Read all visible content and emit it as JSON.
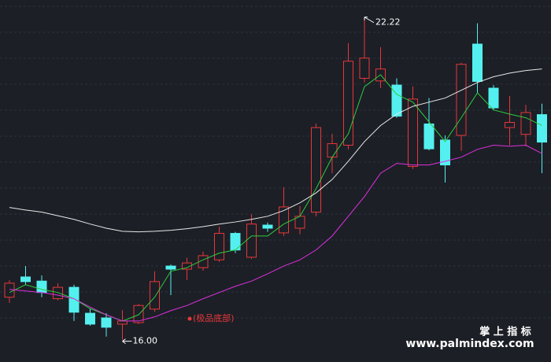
{
  "chart_data": {
    "type": "candlestick",
    "open": [
      16.82,
      17.21,
      17.13,
      16.79,
      17.01,
      16.51,
      16.42,
      16.3,
      16.33,
      16.59,
      17.42,
      17.36,
      17.39,
      17.54,
      18.05,
      17.59,
      18.21,
      18.06,
      18.15,
      18.46,
      19.52,
      19.75,
      21.04,
      20.99,
      20.91,
      19.34,
      20.16,
      19.85,
      19.94,
      21.7,
      20.85,
      20.09,
      19.96,
      20.34
    ],
    "high": [
      17.15,
      17.42,
      17.24,
      17.09,
      17.06,
      16.6,
      16.51,
      16.57,
      16.69,
      17.32,
      17.45,
      17.58,
      17.7,
      18.18,
      18.08,
      18.42,
      18.26,
      18.94,
      18.58,
      20.17,
      19.97,
      21.72,
      22.22,
      21.64,
      21.04,
      20.88,
      20.66,
      19.94,
      21.34,
      22.1,
      20.91,
      20.7,
      20.53,
      20.55
    ],
    "low": [
      16.71,
      17.06,
      16.82,
      16.76,
      16.36,
      16.27,
      16.06,
      16.0,
      16.3,
      16.54,
      16.86,
      17.15,
      17.33,
      17.5,
      17.67,
      17.56,
      18.08,
      18.0,
      18.03,
      18.38,
      19.21,
      19.67,
      20.96,
      20.85,
      20.28,
      19.29,
      19.65,
      19.03,
      19.64,
      20.76,
      20.43,
      19.75,
      19.73,
      19.21
    ],
    "close": [
      17.09,
      17.12,
      16.91,
      17.01,
      16.53,
      16.3,
      16.24,
      16.36,
      16.66,
      17.12,
      17.36,
      17.48,
      17.62,
      18.05,
      17.73,
      18.23,
      18.15,
      18.56,
      18.38,
      20.09,
      19.78,
      21.37,
      21.43,
      21.22,
      20.31,
      20.64,
      19.68,
      19.37,
      21.31,
      20.98,
      20.47,
      20.19,
      20.38,
      19.81
    ],
    "up_color": "#e8373a",
    "down_color": "#54f0f0",
    "lines": [
      {
        "color": "#2ecc40",
        "values": [
          16.91,
          17.06,
          16.97,
          16.91,
          16.79,
          16.6,
          16.48,
          16.36,
          16.48,
          16.82,
          17.32,
          17.39,
          17.54,
          17.67,
          17.73,
          18.0,
          18.0,
          18.23,
          18.38,
          18.91,
          19.52,
          19.97,
          20.88,
          21.11,
          20.73,
          20.58,
          20.2,
          19.82,
          20.28,
          20.76,
          20.43,
          20.35,
          20.28,
          20.13
        ]
      },
      {
        "color": "#e8e8e8",
        "values": [
          18.55,
          18.5,
          18.46,
          18.39,
          18.32,
          18.23,
          18.15,
          18.09,
          18.08,
          18.09,
          18.11,
          18.14,
          18.18,
          18.23,
          18.27,
          18.32,
          18.38,
          18.49,
          18.64,
          18.83,
          19.09,
          19.44,
          19.82,
          20.13,
          20.35,
          20.5,
          20.58,
          20.66,
          20.81,
          20.96,
          21.07,
          21.14,
          21.19,
          21.22
        ]
      },
      {
        "color": "#e030e0",
        "values": [
          16.97,
          16.94,
          16.91,
          16.86,
          16.79,
          16.63,
          16.48,
          16.36,
          16.36,
          16.44,
          16.56,
          16.66,
          16.79,
          16.91,
          17.03,
          17.13,
          17.27,
          17.42,
          17.54,
          17.73,
          18.0,
          18.38,
          18.76,
          19.21,
          19.4,
          19.37,
          19.37,
          19.44,
          19.52,
          19.67,
          19.75,
          19.73,
          19.75,
          19.59
        ]
      }
    ],
    "ylim": [
      15.57,
      22.55
    ],
    "max_label": "22.22",
    "min_label": "16.00",
    "signal": {
      "label": "(极品底部)",
      "color": "#e8373a"
    }
  },
  "watermark": {
    "title": "掌 上 指 标",
    "url": "www.palmindex.com"
  }
}
